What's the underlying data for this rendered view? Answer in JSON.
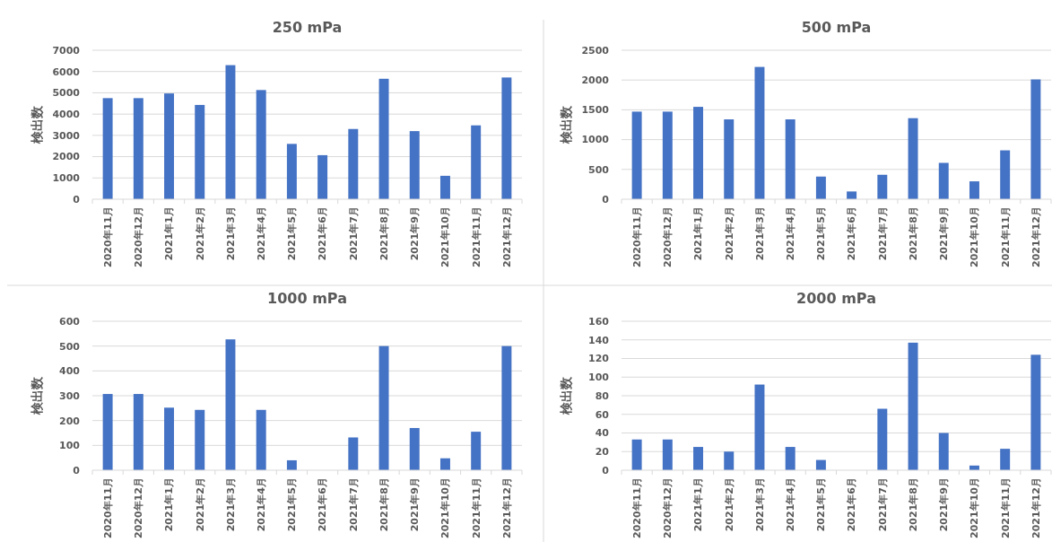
{
  "chart_data": [
    {
      "type": "bar",
      "title": "250 mPa",
      "ylabel": "検出数",
      "categories": [
        "2020年11月",
        "2020年12月",
        "2021年1月",
        "2021年2月",
        "2021年3月",
        "2021年4月",
        "2021年5月",
        "2021年6月",
        "2021年7月",
        "2021年8月",
        "2021年9月",
        "2021年10月",
        "2021年11月",
        "2021年12月"
      ],
      "values": [
        4750,
        4750,
        4970,
        4430,
        6300,
        5130,
        2600,
        2070,
        3300,
        5660,
        3200,
        1100,
        3470,
        5720
      ],
      "color": "#4472c4",
      "ylim": [
        0,
        7000
      ],
      "yticks": [
        0,
        1000,
        2000,
        3000,
        4000,
        5000,
        6000,
        7000
      ],
      "grid": "y"
    },
    {
      "type": "bar",
      "title": "500 mPa",
      "ylabel": "検出数",
      "categories": [
        "2020年11月",
        "2020年12月",
        "2021年1月",
        "2021年2月",
        "2021年3月",
        "2021年4月",
        "2021年5月",
        "2021年6月",
        "2021年7月",
        "2021年8月",
        "2021年9月",
        "2021年10月",
        "2021年11月",
        "2021年12月"
      ],
      "values": [
        1470,
        1470,
        1550,
        1340,
        2220,
        1340,
        380,
        130,
        410,
        1360,
        610,
        300,
        820,
        2010
      ],
      "color": "#4472c4",
      "ylim": [
        0,
        2500
      ],
      "yticks": [
        0,
        500,
        1000,
        1500,
        2000,
        2500
      ],
      "grid": "y"
    },
    {
      "type": "bar",
      "title": "1000 mPa",
      "ylabel": "検出数",
      "categories": [
        "2020年11月",
        "2020年12月",
        "2021年1月",
        "2021年2月",
        "2021年3月",
        "2021年4月",
        "2021年5月",
        "2021年6月",
        "2021年7月",
        "2021年8月",
        "2021年9月",
        "2021年10月",
        "2021年11月",
        "2021年12月"
      ],
      "values": [
        307,
        307,
        252,
        243,
        527,
        243,
        40,
        0,
        132,
        500,
        170,
        48,
        155,
        500
      ],
      "color": "#4472c4",
      "ylim": [
        0,
        600
      ],
      "yticks": [
        0,
        100,
        200,
        300,
        400,
        500,
        600
      ],
      "grid": "y"
    },
    {
      "type": "bar",
      "title": "2000 mPa",
      "ylabel": "検出数",
      "categories": [
        "2020年11月",
        "2020年12月",
        "2021年1月",
        "2021年2月",
        "2021年3月",
        "2021年4月",
        "2021年5月",
        "2021年6月",
        "2021年7月",
        "2021年8月",
        "2021年9月",
        "2021年10月",
        "2021年11月",
        "2021年12月"
      ],
      "values": [
        33,
        33,
        25,
        20,
        92,
        25,
        11,
        0,
        66,
        137,
        40,
        5,
        23,
        124
      ],
      "color": "#4472c4",
      "ylim": [
        0,
        160
      ],
      "yticks": [
        0,
        20,
        40,
        60,
        80,
        100,
        120,
        140,
        160
      ],
      "grid": "y"
    }
  ]
}
